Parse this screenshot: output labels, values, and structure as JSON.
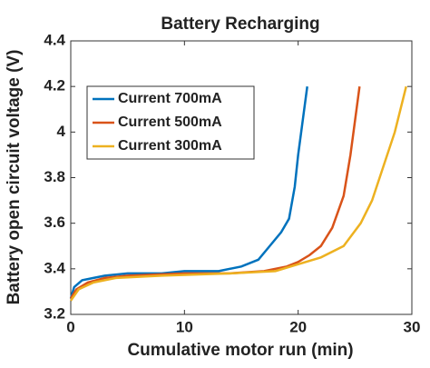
{
  "chart_data": {
    "type": "line",
    "title": "Battery Recharging",
    "x_label": "Cumulative motor run (min)",
    "y_label": "Battery open circuit voltage (V)",
    "xlim": [
      0,
      30
    ],
    "xticks": [
      0,
      10,
      20,
      30
    ],
    "ylim": [
      3.2,
      4.4
    ],
    "yticks": [
      3.2,
      3.4,
      3.6,
      3.8,
      4,
      4.2,
      4.4
    ],
    "grid": false,
    "legend": "upper left",
    "series": [
      {
        "name": "Current 700mA",
        "color": "#0072bd",
        "x": [
          0,
          0.3,
          1,
          2,
          3,
          5,
          8,
          10,
          13,
          15,
          16.5,
          17.5,
          18.5,
          19.2,
          19.7,
          20,
          20.4,
          20.8
        ],
        "values": [
          3.27,
          3.32,
          3.35,
          3.36,
          3.37,
          3.38,
          3.38,
          3.39,
          3.39,
          3.41,
          3.44,
          3.5,
          3.56,
          3.62,
          3.76,
          3.9,
          4.05,
          4.2
        ]
      },
      {
        "name": "Current 500mA",
        "color": "#d95319",
        "x": [
          0,
          0.5,
          1.5,
          3,
          5,
          10,
          14,
          17,
          19,
          20,
          21,
          22,
          23,
          24,
          24.6,
          25,
          25.4
        ],
        "values": [
          3.27,
          3.31,
          3.34,
          3.36,
          3.37,
          3.38,
          3.38,
          3.39,
          3.41,
          3.43,
          3.46,
          3.5,
          3.58,
          3.72,
          3.9,
          4.05,
          4.2
        ]
      },
      {
        "name": "Current 300mA",
        "color": "#edb120",
        "x": [
          0,
          0.7,
          2,
          4,
          8,
          14,
          18,
          20,
          22,
          24,
          25.5,
          26.5,
          27.5,
          28.5,
          29.5
        ],
        "values": [
          3.26,
          3.31,
          3.34,
          3.36,
          3.37,
          3.38,
          3.39,
          3.42,
          3.45,
          3.5,
          3.6,
          3.7,
          3.85,
          4.0,
          4.2
        ]
      }
    ]
  }
}
